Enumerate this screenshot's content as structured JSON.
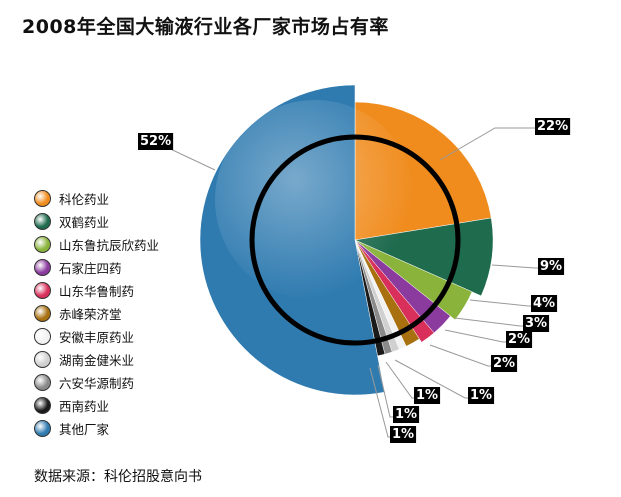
{
  "chart_data": {
    "type": "pie",
    "title": "2008年全国大输液行业各厂家市场占有率",
    "source": "数据来源：科伦招股意向书",
    "series": [
      {
        "name": "科伦药业",
        "value": 22,
        "label": "22%",
        "color": "#f08c1e"
      },
      {
        "name": "双鹤药业",
        "value": 9,
        "label": "9%",
        "color": "#1e6b4e"
      },
      {
        "name": "山东鲁抗辰欣药业",
        "value": 4,
        "label": "4%",
        "color": "#8ab33c"
      },
      {
        "name": "石家庄四药",
        "value": 3,
        "label": "3%",
        "color": "#8b3a9e"
      },
      {
        "name": "山东华鲁制药",
        "value": 2,
        "label": "2%",
        "color": "#d8305a"
      },
      {
        "name": "赤峰荣济堂",
        "value": 2,
        "label": "2%",
        "color": "#a8700e"
      },
      {
        "name": "安徽丰原药业",
        "value": 1,
        "label": "1%",
        "color": "#f2f2f2"
      },
      {
        "name": "湖南金健米业",
        "value": 1,
        "label": "1%",
        "color": "#d0d0d0"
      },
      {
        "name": "六安华源制药",
        "value": 1,
        "label": "1%",
        "color": "#8a8a8a"
      },
      {
        "name": "西南药业",
        "value": 1,
        "label": "1%",
        "color": "#1a1a1a"
      },
      {
        "name": "其他厂家",
        "value": 52,
        "label": "52%",
        "color": "#2f7bb0"
      }
    ]
  }
}
